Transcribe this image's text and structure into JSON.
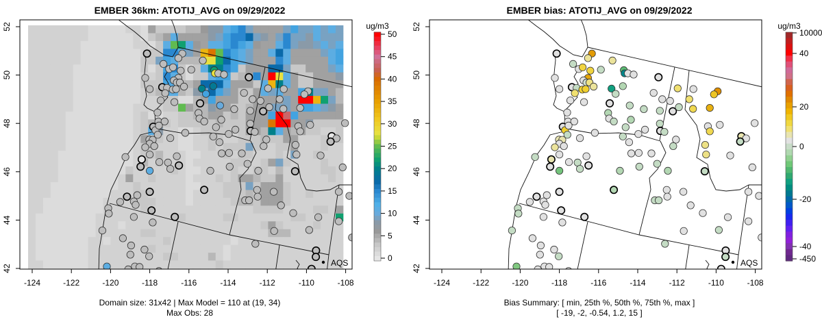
{
  "chart_data": [
    {
      "type": "heatmap",
      "title": "EMBER 36km: ATOTIJ_AVG on 09/29/2022",
      "xlabel": "",
      "ylabel": "",
      "x_ticks": [
        "-124",
        "-122",
        "-120",
        "-118",
        "-116",
        "-114",
        "-112",
        "-110",
        "-108"
      ],
      "y_ticks": [
        "52",
        "50",
        "48",
        "46",
        "44",
        "42"
      ],
      "xlim": [
        -124.6,
        -107.6
      ],
      "ylim": [
        41.8,
        52.3
      ],
      "footer": [
        "Domain size: 31x42 | Max Model = 110 at (19, 34)",
        "Max Obs: 28"
      ],
      "colorbar": {
        "unit": "ug/m3",
        "ticks": [
          "50",
          "45",
          "40",
          "35",
          "30",
          "25",
          "20",
          "15",
          "10",
          "5",
          "0"
        ],
        "range": [
          0,
          50
        ]
      },
      "colorscale": [
        [
          0,
          "#e6e6e6"
        ],
        [
          3,
          "#c8c8c8"
        ],
        [
          6,
          "#999999"
        ],
        [
          8,
          "#8a9aa8"
        ],
        [
          10,
          "#68aadc"
        ],
        [
          12,
          "#50b0e8"
        ],
        [
          15,
          "#2a88d0"
        ],
        [
          17,
          "#0a6aaa"
        ],
        [
          20,
          "#00808a"
        ],
        [
          22,
          "#10a070"
        ],
        [
          25,
          "#60bb50"
        ],
        [
          27,
          "#c8d838"
        ],
        [
          28,
          "#e8e040"
        ],
        [
          31,
          "#f0c820"
        ],
        [
          35,
          "#e8a000"
        ],
        [
          40,
          "#d86a00"
        ],
        [
          42,
          "#c86050"
        ],
        [
          45,
          "#d0709a"
        ],
        [
          47,
          "#e84060"
        ],
        [
          50,
          "#ff0000"
        ]
      ],
      "grid_codes": {
        "a": 1,
        "b": 2,
        "c": 3,
        "d": 4,
        "e": 5.5,
        "f": 6,
        "g": 8,
        "h": 9,
        "i": 11,
        "j": 13,
        "k": 15,
        "l": 17,
        "m": 20,
        "n": 22,
        "o": 25,
        "p": 28,
        "q": 33,
        "r": 39,
        "s": 43,
        "t": 50
      },
      "grid_rows": [
        "bbbbbbbbaaaaabbaeccccddfggijkheeeehjhhihih",
        "bbbbbbbbaaaaaabacdeieeeeghjkklhgehkhhgihhh",
        "bbbbbbbaaaaaaabbacionifeiijkjifeeikhgghihi",
        "bbbbbbbaaaaaaaabcckkiheqrokjiheeilieeeehij",
        "bbbbbbbaaaaaaaacchjidddppnljiheeekieeeeeij",
        "bbbbbbaaaaaaaaacacjkcacimmkjceeellhcceeehi",
        "bbbbbbaaaaaaaaabbckicaccijjcdeketpiecceeeg",
        "bbbbbbaaaaaaaaacccjiddelllieeeciqmiecceeee",
        "bbbbbbaaaaaaaaabcdiidcghljhecceihieejmhhed",
        "bbbbbbaaaaaaaaabbbccaadejeeecceeeehettqnhd",
        "bbbbbbaaaaaaaabbbbccoeddgeeccdeehhhejjihge",
        "bbbbbaaaaaaaaabcaabbccddeecdceeejtsjeeeeee",
        "bbbbbaaaaaaaaabcdccbcccccdccceeertteegcccc",
        "bbbbbaaaaaaaaabcigbbaabccccbceedmiedeccbbc",
        "bbbbbaaaaaaaaabeccbbaabbccbbcccdcceebbbccc",
        "bbbbbaaaaaaaaabccbbbaabbcbccchcbbccebbbcbb",
        "bbbbaaaaaaaaaabccdbbbaabbbcbccbbbcbhbbcbbb",
        "bbbbaaaaaaaaaabdbcbbbabbbbbccbbcehcbbbbcbb",
        "bbbbaaaaaaaaacbbbbbcbaabbbbcbbccbdbbbbbccb",
        "bbbbaaaaaaaabebbcbbbbabbbcbceedccebbbbbbcb",
        "bbbaaaaaaaaabbcbbbbbbaabbbccchceeecbbbbbbb",
        "bbbaaaaaaaabbbccbbbbbabbbbcccdceeecbbcbbbb",
        "bbaaaaaaaabbbbcccbbbbabbbbbcddceeecbbbbbbb",
        "bbaaaaaaaabbbbbcbbbbbbbbbbbbbbccccbbbbccbe",
        "baaaaaaaabbbbbbbbbbbcbbbbbccbbbbbbbccbbbbn",
        "baaaaaaaabbbabbbbbbbbbbbbbbbbbbcecbbbbcbbb",
        "baaaaaaaabbbbbbccbbbbbbbbbbbbbbbdddbbbbbbb",
        "baaaaaaabbabbbbbbbcbbbbbbbbabbbbbbbbbbbbbb",
        "baaaaaaabbbbbbbbcbbbbbbbbbabbbbbbbbbbbbbbb",
        "baaaaaaabbbbbbbbbbccbbbbdbabbbbbbbbbbbbbbb",
        "bbaaaaaabbbbbbbbbbbbbbbbbcbbbbbbbbbbbbbbbb"
      ],
      "legend": {
        "label": "AQS",
        "position": "bottom-right"
      }
    },
    {
      "type": "scatter",
      "title": "EMBER bias: ATOTIJ_AVG on 09/29/2022",
      "xlabel": "",
      "ylabel": "",
      "x_ticks": [
        "-124",
        "-122",
        "-120",
        "-118",
        "-116",
        "-114",
        "-112",
        "-110",
        "-108"
      ],
      "y_ticks": [
        "52",
        "50",
        "48",
        "46",
        "44",
        "42"
      ],
      "xlim": [
        -124.6,
        -107.6
      ],
      "ylim": [
        41.8,
        52.3
      ],
      "footer": [
        "Bias Summary: [ min, 25th %, 50th %, 75th %, max ]",
        "[ -19,   -2,   -0.54,   1.2,   15 ]"
      ],
      "bias_summary": {
        "min": -19,
        "p25": -2,
        "p50": -0.54,
        "p75": 1.2,
        "max": 15
      },
      "colorbar": {
        "unit": "ug/m3",
        "ticks": [
          "10000",
          "40",
          "20",
          "0",
          "-20",
          "-40",
          "-450"
        ],
        "colors": [
          "#a02828",
          "#c01e1e",
          "#dc1010",
          "#ff0000",
          "#f03048",
          "#e05078",
          "#d06a98",
          "#d07088",
          "#d0644c",
          "#d86020",
          "#e07000",
          "#e08800",
          "#e8a000",
          "#f0b400",
          "#f0c820",
          "#f0d840",
          "#f0e070",
          "#e8e4b0",
          "#e2e2e2",
          "#c8dcc8",
          "#b0d8b0",
          "#90d090",
          "#70c878",
          "#50b870",
          "#30a870",
          "#10a080",
          "#008c80",
          "#007890",
          "#0068a8",
          "#0058c8",
          "#0040e0",
          "#1828f0",
          "#4020f0",
          "#6020f0",
          "#8020e0",
          "#9020d8",
          "#8030b0",
          "#702890",
          "#602880"
        ]
      },
      "colorscale": [
        [
          -20,
          "#007f8c"
        ],
        [
          -15,
          "#10a080"
        ],
        [
          -10,
          "#50b870"
        ],
        [
          -6,
          "#80c880"
        ],
        [
          -2,
          "#c4dcc4"
        ],
        [
          -0.6,
          "#e0e0e0"
        ],
        [
          0.5,
          "#e2e2e2"
        ],
        [
          2,
          "#e8e4b0"
        ],
        [
          5,
          "#f0e070"
        ],
        [
          9,
          "#f0d030"
        ],
        [
          12,
          "#e8b010"
        ],
        [
          15,
          "#e09000"
        ],
        [
          20,
          "#e07000"
        ]
      ],
      "legend": {
        "label": "AQS",
        "position": "bottom-right"
      }
    }
  ],
  "stations": [
    [
      -118.14,
      50.89,
      4,
      0,
      1
    ],
    [
      -116.34,
      50.89,
      4,
      14,
      0
    ],
    [
      -116.54,
      50.7,
      4,
      3,
      0
    ],
    [
      -115.29,
      50.6,
      4,
      3,
      0
    ],
    [
      -117.3,
      50.46,
      4,
      -2,
      0
    ],
    [
      -117.01,
      50.25,
      4,
      0,
      0
    ],
    [
      -116.81,
      50.32,
      4,
      8,
      0
    ],
    [
      -116.42,
      50.18,
      4,
      8,
      0
    ],
    [
      -115.88,
      50.22,
      4,
      -2,
      0
    ],
    [
      -114.71,
      50.2,
      22,
      -9,
      0
    ],
    [
      -114.67,
      50.07,
      28,
      -19,
      0
    ],
    [
      -114.5,
      50.07,
      4,
      0,
      0
    ],
    [
      -114.21,
      50.02,
      4,
      0,
      0
    ],
    [
      -112.94,
      49.91,
      4,
      0,
      1
    ],
    [
      -118.23,
      49.88,
      4,
      0,
      0
    ],
    [
      -116.54,
      49.88,
      4,
      13,
      0
    ],
    [
      -116.77,
      49.78,
      4,
      0,
      0
    ],
    [
      -116.62,
      49.69,
      4,
      -1.5,
      0
    ],
    [
      -116.46,
      49.69,
      4,
      4,
      0
    ],
    [
      -117.36,
      49.5,
      4,
      0,
      1
    ],
    [
      -117.12,
      49.47,
      4,
      -2,
      0
    ],
    [
      -116.83,
      49.4,
      4,
      9,
      0
    ],
    [
      -116.66,
      49.42,
      4,
      9,
      0
    ],
    [
      -116.25,
      49.52,
      4,
      3,
      0
    ],
    [
      -118.0,
      49.42,
      4,
      0,
      0
    ],
    [
      -117.21,
      49.25,
      4,
      5,
      0
    ],
    [
      -115.34,
      49.44,
      20,
      -15,
      0
    ],
    [
      -114.76,
      49.54,
      19,
      -3,
      0
    ],
    [
      -115.13,
      49.22,
      13,
      -2,
      0
    ],
    [
      -113.19,
      49.26,
      4,
      0,
      0
    ],
    [
      -111.96,
      49.45,
      4,
      5,
      0
    ],
    [
      -111.16,
      49.42,
      4,
      0,
      0
    ],
    [
      -109.92,
      49.33,
      4,
      15,
      0
    ],
    [
      -110.11,
      49.2,
      4,
      10,
      0
    ],
    [
      -117.44,
      48.95,
      4,
      0,
      0
    ],
    [
      -116.74,
      48.88,
      4,
      0,
      0
    ],
    [
      -115.43,
      48.83,
      4,
      0,
      1
    ],
    [
      -114.41,
      48.74,
      10,
      -2,
      0
    ],
    [
      -113.69,
      48.59,
      4,
      -2,
      0
    ],
    [
      -112.75,
      49.0,
      4,
      0,
      0
    ],
    [
      -112.35,
      48.93,
      4,
      0,
      0
    ],
    [
      -112.87,
      48.52,
      4,
      -2,
      0
    ],
    [
      -112.21,
      48.5,
      4,
      0,
      1
    ],
    [
      -111.9,
      48.67,
      4,
      -2,
      0
    ],
    [
      -111.37,
      49.0,
      4,
      5,
      0
    ],
    [
      -111.18,
      48.6,
      4,
      7,
      0
    ],
    [
      -110.32,
      48.64,
      4,
      12,
      0
    ],
    [
      -117.6,
      48.45,
      4,
      0,
      0
    ],
    [
      -115.51,
      48.43,
      4,
      -3,
      0
    ],
    [
      -115.46,
      48.2,
      4,
      0,
      0
    ],
    [
      -115.22,
      48.08,
      4,
      -2,
      0
    ],
    [
      -114.35,
      48.15,
      4,
      -3,
      0
    ],
    [
      -117.56,
      48.08,
      4,
      0,
      0
    ],
    [
      -117.24,
      48.08,
      4,
      0,
      0
    ],
    [
      -117.82,
      47.86,
      4,
      0,
      1
    ],
    [
      -117.71,
      47.72,
      4,
      9,
      0
    ],
    [
      -117.53,
      47.91,
      4,
      0,
      0
    ],
    [
      -114.62,
      47.84,
      4,
      -2,
      0
    ],
    [
      -113.63,
      47.74,
      4,
      0,
      0
    ],
    [
      -112.87,
      47.99,
      4,
      -2,
      0
    ],
    [
      -112.85,
      47.69,
      4,
      0,
      1
    ],
    [
      -112.64,
      47.65,
      4,
      -2,
      0
    ],
    [
      -110.42,
      47.88,
      4,
      0,
      0
    ],
    [
      -109.81,
      47.94,
      4,
      0,
      0
    ],
    [
      -110.32,
      47.67,
      4,
      7,
      0
    ],
    [
      -108.03,
      48.01,
      4,
      0,
      0
    ],
    [
      -117.59,
      47.53,
      4,
      -2,
      0
    ],
    [
      -116.19,
      47.61,
      4,
      0,
      0
    ],
    [
      -114.76,
      47.46,
      4,
      -2,
      0
    ],
    [
      -113.97,
      47.56,
      4,
      0,
      0
    ],
    [
      -116.95,
      47.39,
      4,
      0,
      0
    ],
    [
      -114.44,
      47.22,
      4,
      0,
      0
    ],
    [
      -118.02,
      47.33,
      4,
      2,
      0
    ],
    [
      -117.85,
      47.32,
      4,
      2,
      0
    ],
    [
      -118.0,
      47.16,
      4,
      0,
      0
    ],
    [
      -117.77,
      47.06,
      4,
      0,
      0
    ],
    [
      -118.23,
      47.01,
      4,
      3,
      0
    ],
    [
      -112.05,
      47.33,
      4,
      0,
      0
    ],
    [
      -112.19,
      47.06,
      4,
      -2,
      0
    ],
    [
      -108.71,
      47.47,
      1,
      2,
      1
    ],
    [
      -108.47,
      47.38,
      4,
      0,
      0
    ],
    [
      -108.77,
      47.25,
      4,
      -2,
      1
    ],
    [
      -110.56,
      47.11,
      4,
      4,
      0
    ],
    [
      -118.0,
      46.71,
      4,
      0,
      0
    ],
    [
      -119.24,
      46.61,
      4,
      -2,
      0
    ],
    [
      -116.62,
      46.64,
      4,
      0,
      0
    ],
    [
      -114.33,
      46.76,
      4,
      0,
      0
    ],
    [
      -113.95,
      46.78,
      4,
      0,
      0
    ],
    [
      -113.3,
      46.76,
      4,
      0,
      0
    ],
    [
      -110.51,
      46.71,
      4,
      4,
      0
    ],
    [
      -109.28,
      46.67,
      4,
      0,
      0
    ],
    [
      -118.41,
      46.51,
      1,
      2,
      1
    ],
    [
      -118.47,
      46.21,
      4,
      0,
      1
    ],
    [
      -117.51,
      46.4,
      4,
      0,
      0
    ],
    [
      -117.07,
      46.38,
      4,
      -2,
      0
    ],
    [
      -116.51,
      46.26,
      4,
      0,
      1
    ],
    [
      -116.95,
      46.12,
      4,
      -2,
      0
    ],
    [
      -118.0,
      46.04,
      11,
      -7,
      0
    ],
    [
      -114.91,
      46.04,
      4,
      -3,
      0
    ],
    [
      -113.92,
      46.21,
      4,
      -2,
      0
    ],
    [
      -113.01,
      46.33,
      4,
      -2,
      0
    ],
    [
      -112.46,
      46.04,
      4,
      -3,
      0
    ],
    [
      -110.58,
      46.02,
      4,
      -2,
      1
    ],
    [
      -108.15,
      46.18,
      4,
      0,
      0
    ],
    [
      -115.22,
      45.25,
      4,
      -3,
      1
    ],
    [
      -118.0,
      45.17,
      4,
      0,
      1
    ],
    [
      -118.64,
      45.03,
      4,
      0,
      0
    ],
    [
      -119.16,
      44.97,
      4,
      0,
      1
    ],
    [
      -119.51,
      44.75,
      4,
      0,
      0
    ],
    [
      -118.81,
      44.77,
      4,
      0,
      0
    ],
    [
      -118.72,
      44.63,
      4,
      0,
      0
    ],
    [
      -112.52,
      45.25,
      4,
      0,
      0
    ],
    [
      -112.49,
      44.97,
      4,
      0,
      0
    ],
    [
      -111.67,
      45.17,
      4,
      0,
      0
    ],
    [
      -113.13,
      44.82,
      4,
      -2,
      0
    ],
    [
      -112.93,
      44.82,
      4,
      -2,
      0
    ],
    [
      -108.35,
      45.17,
      4,
      0,
      0
    ],
    [
      -107.81,
      45.0,
      4,
      0,
      0
    ],
    [
      -120.12,
      44.49,
      4,
      -2,
      0
    ],
    [
      -120.09,
      44.27,
      4,
      -2,
      0
    ],
    [
      -117.91,
      44.4,
      4,
      0,
      1
    ],
    [
      -116.72,
      44.13,
      4,
      0,
      1
    ],
    [
      -118.81,
      44.13,
      4,
      0,
      0
    ],
    [
      -111.3,
      44.61,
      4,
      0,
      0
    ],
    [
      -110.68,
      44.29,
      4,
      0,
      0
    ],
    [
      -109.4,
      44.12,
      4,
      0,
      0
    ],
    [
      -108.35,
      43.95,
      4,
      0,
      0
    ],
    [
      -117.85,
      43.9,
      4,
      0,
      0
    ],
    [
      -120.42,
      43.57,
      4,
      -2,
      0
    ],
    [
      -111.65,
      43.55,
      4,
      0,
      0
    ],
    [
      -109.86,
      43.59,
      4,
      -2,
      0
    ],
    [
      -107.68,
      43.28,
      4,
      0,
      0
    ],
    [
      -119.37,
      43.25,
      4,
      0,
      0
    ],
    [
      -112.61,
      43.02,
      4,
      -2,
      0
    ],
    [
      -118.95,
      42.95,
      4,
      0,
      0
    ],
    [
      -118.27,
      42.78,
      4,
      0,
      0
    ],
    [
      -118.99,
      42.57,
      4,
      0,
      0
    ],
    [
      -118.03,
      42.5,
      4,
      -2,
      0
    ],
    [
      -109.51,
      42.74,
      4,
      0,
      1
    ],
    [
      -109.52,
      42.48,
      4,
      -2,
      1
    ],
    [
      -120.19,
      42.08,
      11,
      -6,
      0
    ],
    [
      -119.1,
      41.96,
      4,
      0,
      0
    ],
    [
      -118.76,
      42.08,
      4,
      0,
      0
    ],
    [
      -118.52,
      42.06,
      4,
      0,
      0
    ],
    [
      -117.53,
      41.89,
      4,
      0,
      0
    ],
    [
      -109.74,
      41.98,
      4,
      0,
      1
    ]
  ]
}
